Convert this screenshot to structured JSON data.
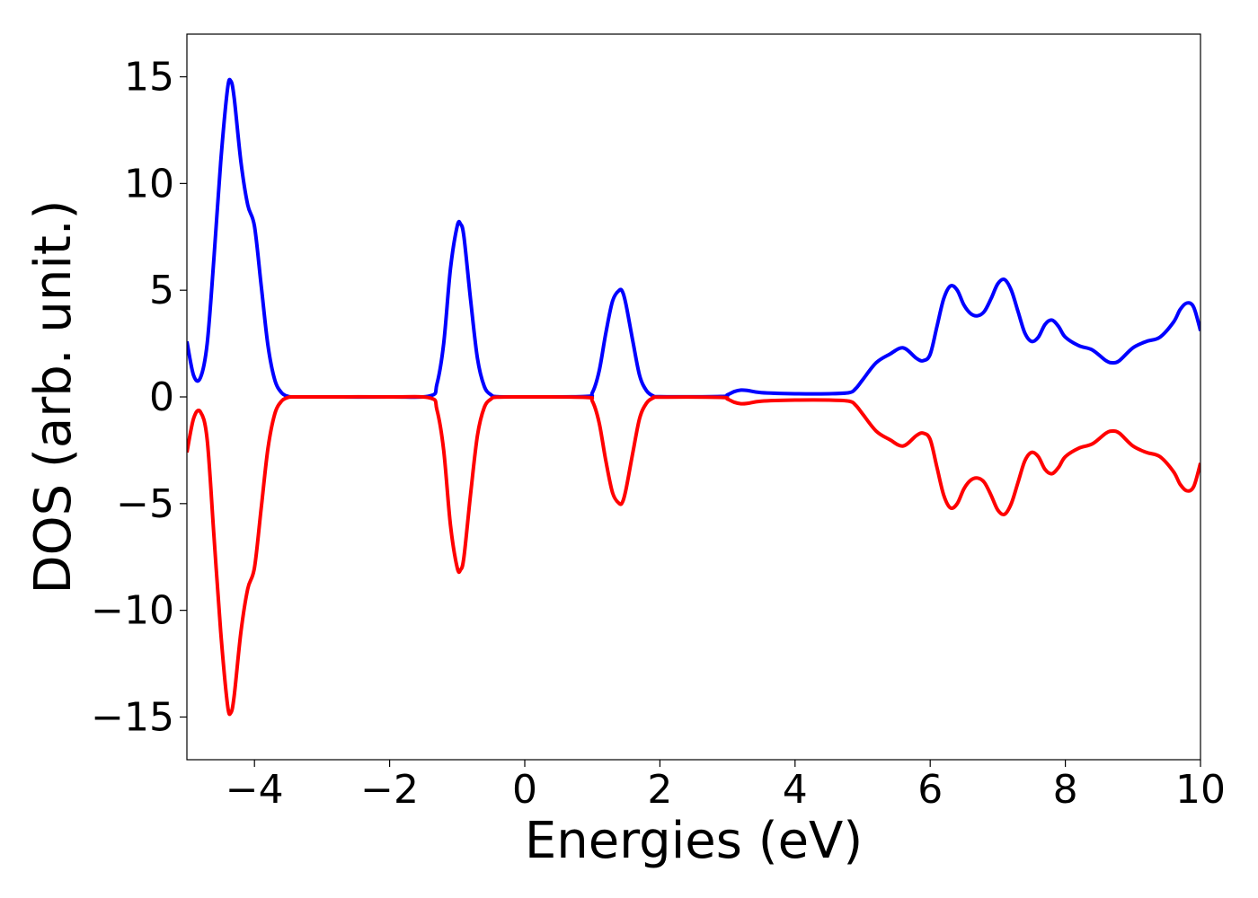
{
  "chart_data": {
    "type": "line",
    "title": "",
    "xlabel": "Energies (eV)",
    "ylabel": "DOS (arb. unit.)",
    "xlim": [
      -5,
      10
    ],
    "ylim": [
      -17,
      17
    ],
    "x_ticks": [
      -4,
      -2,
      0,
      2,
      4,
      6,
      8,
      10
    ],
    "x_tick_labels": [
      "−4",
      "−2",
      "0",
      "2",
      "4",
      "6",
      "8",
      "10"
    ],
    "y_ticks": [
      -15,
      -10,
      -5,
      0,
      5,
      10,
      15
    ],
    "y_tick_labels": [
      "−15",
      "−10",
      "−5",
      "0",
      "5",
      "10",
      "15"
    ],
    "grid": false,
    "legend": "none",
    "series": [
      {
        "color": "#0000ff",
        "x": [
          -5.0,
          -4.9,
          -4.8,
          -4.7,
          -4.6,
          -4.5,
          -4.4,
          -4.35,
          -4.3,
          -4.2,
          -4.1,
          -4.0,
          -3.9,
          -3.8,
          -3.7,
          -3.6,
          -3.5,
          -3.4,
          -3.0,
          -2.0,
          -1.4,
          -1.3,
          -1.2,
          -1.1,
          -1.0,
          -0.95,
          -0.9,
          -0.8,
          -0.7,
          -0.6,
          -0.5,
          -0.4,
          0.0,
          0.9,
          1.0,
          1.1,
          1.2,
          1.3,
          1.4,
          1.45,
          1.5,
          1.6,
          1.7,
          1.8,
          1.9,
          2.0,
          2.9,
          3.0,
          3.1,
          3.2,
          3.3,
          3.5,
          4.0,
          4.5,
          4.8,
          4.9,
          5.0,
          5.2,
          5.4,
          5.6,
          5.8,
          5.9,
          6.0,
          6.1,
          6.2,
          6.3,
          6.4,
          6.5,
          6.6,
          6.7,
          6.8,
          6.9,
          7.0,
          7.1,
          7.2,
          7.3,
          7.4,
          7.5,
          7.6,
          7.7,
          7.8,
          7.9,
          8.0,
          8.2,
          8.4,
          8.6,
          8.7,
          8.8,
          9.0,
          9.2,
          9.4,
          9.6,
          9.7,
          9.8,
          9.9,
          10.0
        ],
        "y": [
          2.6,
          1.0,
          0.9,
          2.5,
          6.5,
          11.0,
          14.4,
          14.8,
          14.0,
          11.0,
          9.0,
          8.0,
          5.2,
          2.4,
          0.8,
          0.2,
          0.02,
          0.0,
          0.0,
          0.0,
          0.05,
          0.6,
          2.5,
          6.0,
          8.0,
          8.1,
          7.5,
          4.5,
          1.8,
          0.5,
          0.1,
          0.01,
          0.0,
          0.02,
          0.2,
          1.2,
          3.0,
          4.5,
          5.0,
          4.9,
          4.3,
          2.6,
          1.0,
          0.3,
          0.05,
          0.01,
          0.02,
          0.1,
          0.25,
          0.32,
          0.3,
          0.2,
          0.15,
          0.15,
          0.2,
          0.4,
          0.8,
          1.6,
          2.0,
          2.3,
          1.8,
          1.7,
          2.0,
          3.3,
          4.6,
          5.2,
          5.0,
          4.3,
          3.9,
          3.8,
          4.0,
          4.6,
          5.3,
          5.5,
          5.0,
          4.0,
          3.0,
          2.6,
          2.8,
          3.4,
          3.6,
          3.3,
          2.8,
          2.4,
          2.2,
          1.7,
          1.6,
          1.7,
          2.3,
          2.6,
          2.8,
          3.5,
          4.1,
          4.4,
          4.2,
          3.1
        ]
      },
      {
        "color": "#ff0000",
        "x": [
          -5.0,
          -4.9,
          -4.8,
          -4.7,
          -4.6,
          -4.5,
          -4.4,
          -4.35,
          -4.3,
          -4.2,
          -4.1,
          -4.0,
          -3.9,
          -3.8,
          -3.7,
          -3.6,
          -3.5,
          -3.4,
          -3.0,
          -2.0,
          -1.4,
          -1.3,
          -1.2,
          -1.1,
          -1.0,
          -0.95,
          -0.9,
          -0.8,
          -0.7,
          -0.6,
          -0.5,
          -0.4,
          0.0,
          0.9,
          1.0,
          1.1,
          1.2,
          1.3,
          1.4,
          1.45,
          1.5,
          1.6,
          1.7,
          1.8,
          1.9,
          2.0,
          2.9,
          3.0,
          3.1,
          3.2,
          3.3,
          3.5,
          4.0,
          4.5,
          4.8,
          4.9,
          5.0,
          5.2,
          5.4,
          5.6,
          5.8,
          5.9,
          6.0,
          6.1,
          6.2,
          6.3,
          6.4,
          6.5,
          6.6,
          6.7,
          6.8,
          6.9,
          7.0,
          7.1,
          7.2,
          7.3,
          7.4,
          7.5,
          7.6,
          7.7,
          7.8,
          7.9,
          8.0,
          8.2,
          8.4,
          8.6,
          8.7,
          8.8,
          9.0,
          9.2,
          9.4,
          9.6,
          9.7,
          9.8,
          9.9,
          10.0
        ],
        "y": [
          -2.6,
          -1.0,
          -0.7,
          -2.0,
          -6.5,
          -11.0,
          -14.4,
          -14.8,
          -14.0,
          -11.0,
          -9.0,
          -8.0,
          -5.2,
          -2.4,
          -0.8,
          -0.2,
          -0.02,
          0.0,
          0.0,
          0.0,
          -0.05,
          -0.6,
          -2.5,
          -6.0,
          -8.0,
          -8.1,
          -7.5,
          -4.5,
          -1.8,
          -0.5,
          -0.1,
          -0.01,
          0.0,
          -0.02,
          -0.2,
          -1.2,
          -3.0,
          -4.5,
          -5.0,
          -4.9,
          -4.3,
          -2.6,
          -1.0,
          -0.3,
          -0.05,
          -0.01,
          -0.02,
          -0.1,
          -0.25,
          -0.32,
          -0.3,
          -0.2,
          -0.15,
          -0.15,
          -0.2,
          -0.4,
          -0.8,
          -1.6,
          -2.0,
          -2.3,
          -1.8,
          -1.7,
          -2.0,
          -3.3,
          -4.6,
          -5.2,
          -5.0,
          -4.3,
          -3.9,
          -3.8,
          -4.0,
          -4.6,
          -5.3,
          -5.5,
          -5.0,
          -4.0,
          -3.0,
          -2.6,
          -2.8,
          -3.4,
          -3.6,
          -3.3,
          -2.8,
          -2.4,
          -2.2,
          -1.7,
          -1.6,
          -1.7,
          -2.3,
          -2.6,
          -2.8,
          -3.5,
          -4.1,
          -4.4,
          -4.2,
          -3.1
        ]
      }
    ]
  }
}
